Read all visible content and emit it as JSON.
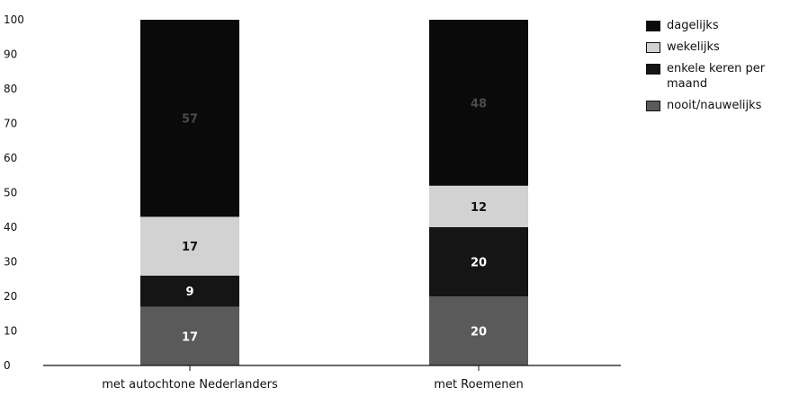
{
  "chart_data": {
    "type": "bar",
    "stacked": true,
    "categories": [
      "met autochtone Nederlanders",
      "met Roemenen"
    ],
    "series": [
      {
        "name": "nooit/nauwelijks",
        "values": [
          17,
          20
        ],
        "labels": [
          "17",
          "20"
        ],
        "color": "#5a5a5a",
        "label_color": "#ffffff"
      },
      {
        "name": "enkele keren per maand",
        "values": [
          9,
          20
        ],
        "labels": [
          "9",
          "20"
        ],
        "color": "#151515",
        "label_color": "#ffffff"
      },
      {
        "name": "wekelijks",
        "values": [
          17,
          12
        ],
        "labels": [
          "17",
          "12"
        ],
        "color": "#d2d2d2",
        "label_color": "#111111"
      },
      {
        "name": "dagelijks",
        "values": [
          57,
          48
        ],
        "labels": [
          "57",
          "48"
        ],
        "color": "#0a0a0a",
        "label_color": "#4a4a4a"
      }
    ],
    "yticks": [
      0,
      10,
      20,
      30,
      40,
      50,
      60,
      70,
      80,
      90,
      100
    ],
    "ylim": [
      0,
      100
    ],
    "legend_order": [
      "dagelijks",
      "wekelijks",
      "enkele keren per maand",
      "nooit/nauwelijks"
    ],
    "legend_position": "right",
    "grid": false
  }
}
